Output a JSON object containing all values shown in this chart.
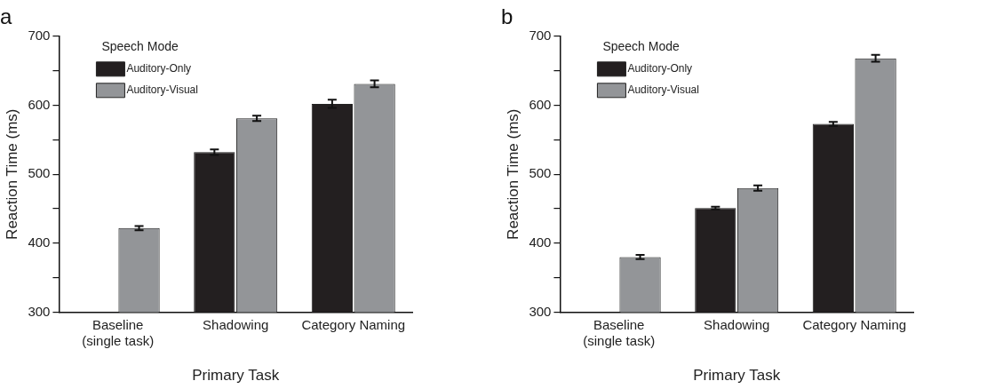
{
  "chart_data": [
    {
      "type": "bar",
      "title": "a",
      "categories": [
        "Baseline\n(single task)",
        "Shadowing",
        "Category Naming"
      ],
      "xlabel": "Primary Task",
      "ylabel": "Reaction Time (ms)",
      "legend_title": "Speech Mode",
      "legend": "top left",
      "grid": false,
      "series": [
        {
          "name": "Auditory-Only",
          "color": "#231f20",
          "values": [
            null,
            532,
            602
          ],
          "errors": [
            null,
            4,
            6
          ]
        },
        {
          "name": "Auditory-Visual",
          "color": "#939598",
          "values": [
            422,
            581,
            631
          ],
          "errors": [
            3,
            4,
            5
          ]
        }
      ],
      "ylim": [
        300,
        700
      ],
      "yticks": [
        300,
        {
          "value": 350,
          "label": null
        },
        400,
        {
          "value": 450,
          "label": null
        },
        500,
        {
          "value": 550,
          "label": null
        },
        600,
        {
          "value": 650,
          "label": null
        },
        700
      ]
    },
    {
      "type": "bar",
      "title": "b",
      "categories": [
        "Baseline\n(single task)",
        "Shadowing",
        "Category Naming"
      ],
      "xlabel": "Primary Task",
      "ylabel": "Reaction Time (ms)",
      "legend_title": "Speech Mode",
      "legend": "top left",
      "grid": false,
      "series": [
        {
          "name": "Auditory-Only",
          "color": "#231f20",
          "values": [
            null,
            451,
            573
          ],
          "errors": [
            null,
            2,
            3
          ]
        },
        {
          "name": "Auditory-Visual",
          "color": "#939598",
          "values": [
            380,
            480,
            668
          ],
          "errors": [
            3,
            4,
            5
          ]
        }
      ],
      "ylim": [
        300,
        700
      ],
      "yticks": [
        300,
        {
          "value": 350,
          "label": null
        },
        400,
        {
          "value": 450,
          "label": null
        },
        500,
        {
          "value": 550,
          "label": null
        },
        600,
        {
          "value": 650,
          "label": null
        },
        700
      ]
    }
  ]
}
